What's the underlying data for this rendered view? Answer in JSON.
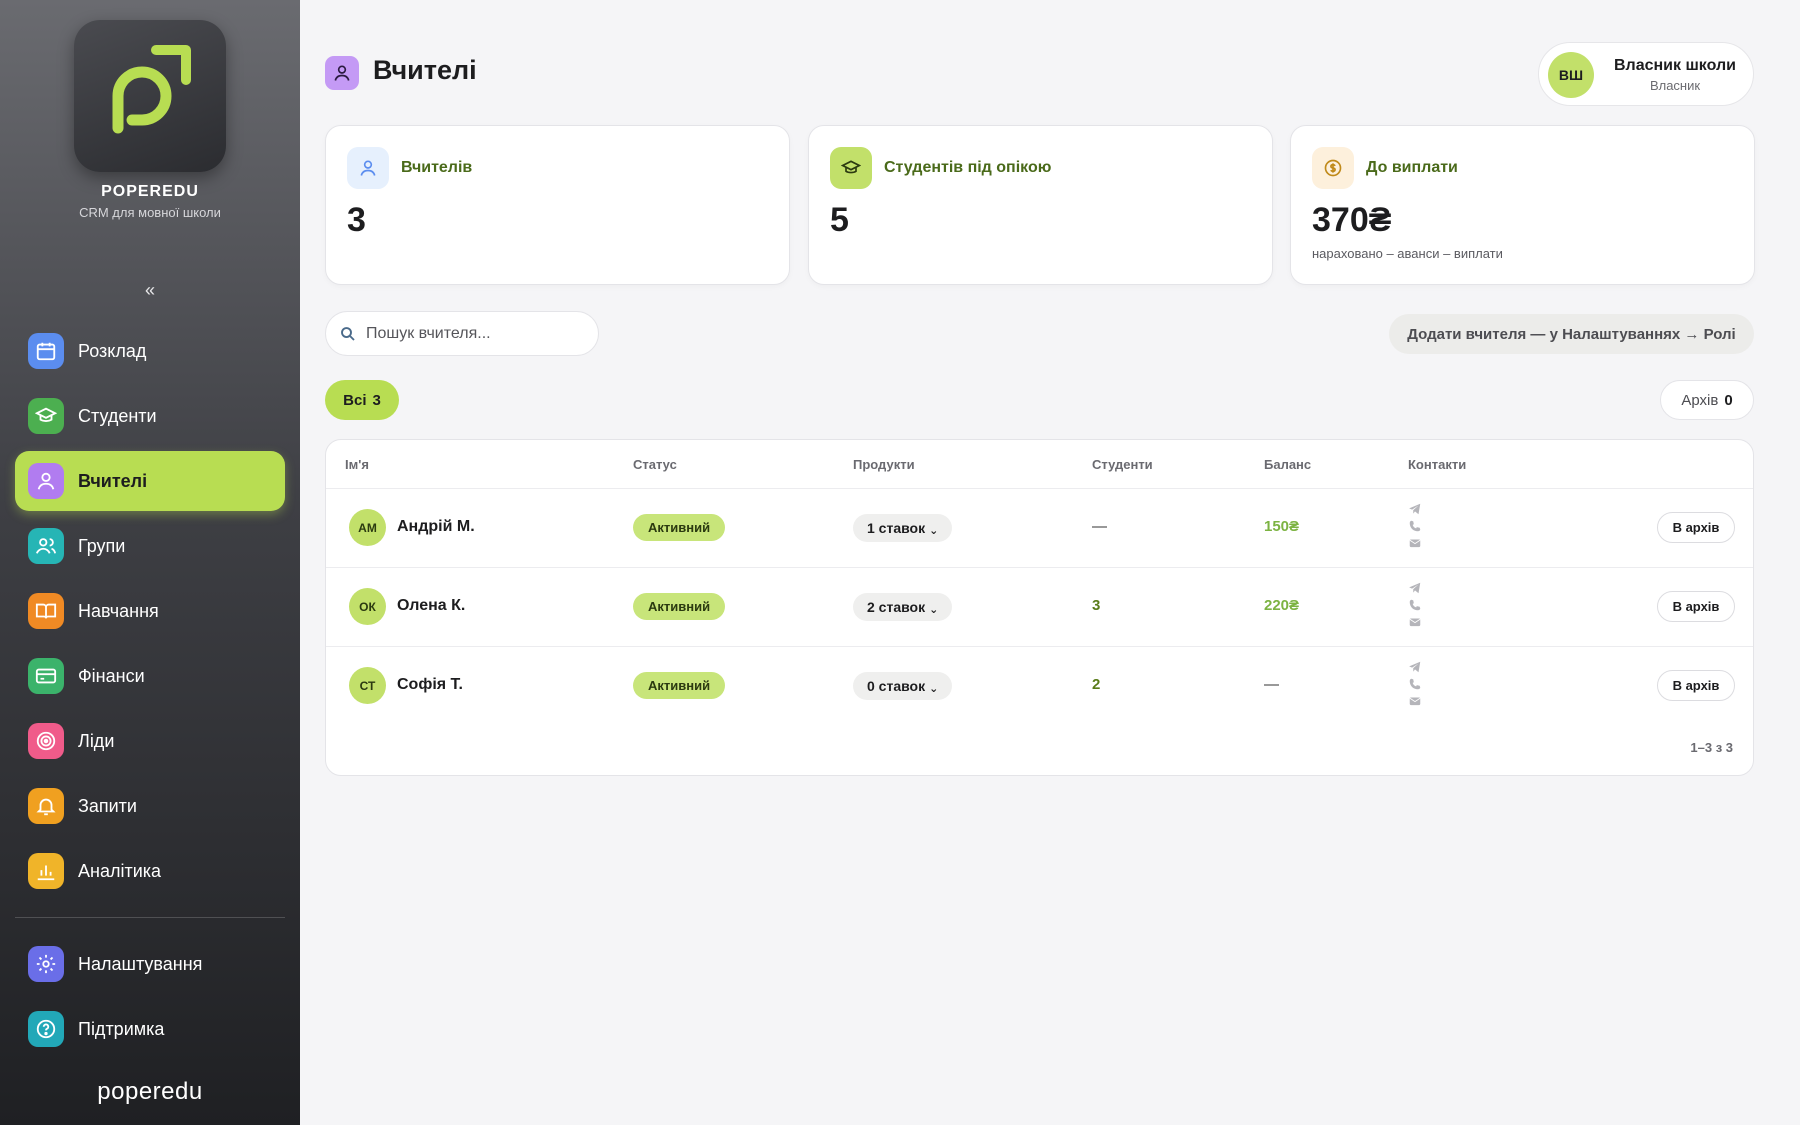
{
  "sidebar": {
    "brand": "POPEREDU",
    "tagline": "CRM для мовної школи",
    "collapse": "«",
    "items": [
      {
        "label": "Розклад",
        "icon": "calendar-icon",
        "color": "#5b8def"
      },
      {
        "label": "Студенти",
        "icon": "graduation-cap-icon",
        "color": "#4caf50"
      },
      {
        "label": "Вчителі",
        "icon": "person-icon",
        "color": "#b17cf0",
        "active": true
      },
      {
        "label": "Групи",
        "icon": "users-icon",
        "color": "#26b5b5"
      },
      {
        "label": "Навчання",
        "icon": "book-icon",
        "color": "#f08a24"
      },
      {
        "label": "Фінанси",
        "icon": "credit-card-icon",
        "color": "#3bb36b"
      },
      {
        "label": "Ліди",
        "icon": "target-icon",
        "color": "#f05b8a"
      },
      {
        "label": "Запити",
        "icon": "bell-icon",
        "color": "#f0a020"
      },
      {
        "label": "Аналітика",
        "icon": "bar-chart-icon",
        "color": "#f0b429"
      }
    ],
    "bottom_items": [
      {
        "label": "Налаштування",
        "icon": "gear-icon",
        "color": "#6a6ee8"
      },
      {
        "label": "Підтримка",
        "icon": "help-icon",
        "color": "#22a8b8"
      }
    ],
    "footer_logo": "poperedu"
  },
  "header": {
    "title": "Вчителі",
    "user": {
      "initials": "ВШ",
      "name": "Власник школи",
      "role": "Власник"
    }
  },
  "stats": [
    {
      "label": "Вчителів",
      "value": "3",
      "icon": "person-icon",
      "icon_bg": "#e6f0fd"
    },
    {
      "label": "Студентів під опікою",
      "value": "5",
      "icon": "graduation-cap-icon",
      "icon_bg": "#c2e06a"
    },
    {
      "label": "До виплати",
      "value": "370₴",
      "sub": "нараховано – аванси – виплати",
      "icon": "coin-icon",
      "icon_bg": "#fdf0dc"
    }
  ],
  "search": {
    "placeholder": "Пошук вчителя..."
  },
  "add_hint": "Додати вчителя — у Налаштуваннях → Ролі",
  "filters": {
    "all_label": "Всі",
    "all_count": "3",
    "archive_label": "Архів",
    "archive_count": "0"
  },
  "table": {
    "columns": [
      "Ім'я",
      "Статус",
      "Продукти",
      "Студенти",
      "Баланс",
      "Контакти"
    ],
    "rows": [
      {
        "initials": "АМ",
        "name": "Андрій М.",
        "status": "Активний",
        "products": "1 ставок",
        "students": "—",
        "balance": "150₴",
        "action": "В архів"
      },
      {
        "initials": "ОК",
        "name": "Олена К.",
        "status": "Активний",
        "products": "2 ставок",
        "students": "3",
        "balance": "220₴",
        "action": "В архів"
      },
      {
        "initials": "СТ",
        "name": "Софія Т.",
        "status": "Активний",
        "products": "0 ставок",
        "students": "2",
        "balance": "—",
        "action": "В архів"
      }
    ],
    "pagination": "1–3 з 3"
  },
  "colors": {
    "accent": "#b8dd52",
    "sidebar_top": "#6a6b70",
    "sidebar_bottom": "#1f2023"
  }
}
